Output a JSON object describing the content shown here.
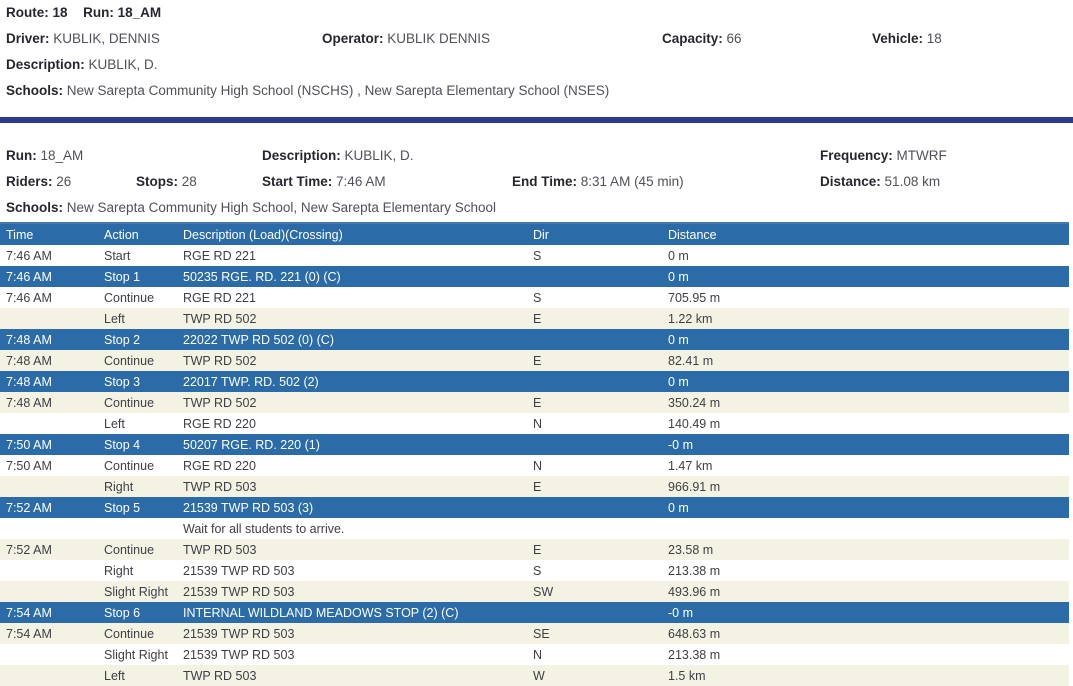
{
  "route_header": {
    "route": {
      "label": "Route:",
      "value": "18"
    },
    "run": {
      "label": "Run:",
      "value": "18_AM"
    },
    "driver": {
      "label": "Driver:",
      "value": "KUBLIK, DENNIS"
    },
    "operator": {
      "label": "Operator:",
      "value": "KUBLIK DENNIS"
    },
    "capacity": {
      "label": "Capacity:",
      "value": "66"
    },
    "vehicle": {
      "label": "Vehicle:",
      "value": "18"
    },
    "description": {
      "label": "Description:",
      "value": "KUBLIK, D."
    },
    "schools": {
      "label": "Schools:",
      "value": "New Sarepta Community High School (NSCHS) , New Sarepta Elementary School (NSES)"
    }
  },
  "run_details": {
    "run": {
      "label": "Run:",
      "value": "18_AM"
    },
    "description": {
      "label": "Description:",
      "value": "KUBLIK, D."
    },
    "frequency": {
      "label": "Frequency:",
      "value": "MTWRF"
    },
    "riders": {
      "label": "Riders:",
      "value": "26"
    },
    "stops": {
      "label": "Stops:",
      "value": "28"
    },
    "start_time": {
      "label": "Start Time:",
      "value": "7:46 AM"
    },
    "end_time": {
      "label": "End Time:",
      "value": "8:31 AM (45 min)"
    },
    "distance": {
      "label": "Distance:",
      "value": "51.08 km"
    },
    "schools": {
      "label": "Schools:",
      "value": "New Sarepta Community High School, New Sarepta Elementary School"
    }
  },
  "table": {
    "columns": [
      "Time",
      "Action",
      "Description (Load)(Crossing)",
      "Dir",
      "Distance"
    ],
    "rows": [
      {
        "time": "7:46 AM",
        "action": "Start",
        "description": "RGE RD 221",
        "dir": "S",
        "distance": "0 m",
        "type": "white"
      },
      {
        "time": "7:46 AM",
        "action": "Stop 1",
        "description": "50235 RGE. RD. 221 (0) (C)",
        "dir": "",
        "distance": "0 m",
        "type": "stop"
      },
      {
        "time": "7:46 AM",
        "action": "Continue",
        "description": "RGE RD 221",
        "dir": "S",
        "distance": "705.95 m",
        "type": "white"
      },
      {
        "time": "",
        "action": "Left",
        "description": "TWP RD 502",
        "dir": "E",
        "distance": "1.22 km",
        "type": "cream"
      },
      {
        "time": "7:48 AM",
        "action": "Stop 2",
        "description": "22022 TWP RD 502 (0) (C)",
        "dir": "",
        "distance": "0 m",
        "type": "stop"
      },
      {
        "time": "7:48 AM",
        "action": "Continue",
        "description": "TWP RD 502",
        "dir": "E",
        "distance": "82.41 m",
        "type": "cream"
      },
      {
        "time": "7:48 AM",
        "action": "Stop 3",
        "description": "22017 TWP. RD. 502 (2)",
        "dir": "",
        "distance": "0 m",
        "type": "stop"
      },
      {
        "time": "7:48 AM",
        "action": "Continue",
        "description": "TWP RD 502",
        "dir": "E",
        "distance": "350.24 m",
        "type": "cream"
      },
      {
        "time": "",
        "action": "Left",
        "description": "RGE RD 220",
        "dir": "N",
        "distance": "140.49 m",
        "type": "white"
      },
      {
        "time": "7:50 AM",
        "action": "Stop 4",
        "description": "50207 RGE. RD. 220 (1)",
        "dir": "",
        "distance": "-0 m",
        "type": "stop"
      },
      {
        "time": "7:50 AM",
        "action": "Continue",
        "description": "RGE RD 220",
        "dir": "N",
        "distance": "1.47 km",
        "type": "white"
      },
      {
        "time": "",
        "action": "Right",
        "description": "TWP RD 503",
        "dir": "E",
        "distance": "966.91 m",
        "type": "cream"
      },
      {
        "time": "7:52 AM",
        "action": "Stop 5",
        "description": "21539 TWP RD 503 (3)",
        "dir": "",
        "distance": "0 m",
        "type": "stop"
      },
      {
        "time": "",
        "action": "",
        "description": "Wait for all students to arrive.",
        "dir": "",
        "distance": "",
        "type": "note"
      },
      {
        "time": "7:52 AM",
        "action": "Continue",
        "description": "TWP RD 503",
        "dir": "E",
        "distance": "23.58 m",
        "type": "cream"
      },
      {
        "time": "",
        "action": "Right",
        "description": "21539 TWP RD 503",
        "dir": "S",
        "distance": "213.38 m",
        "type": "white"
      },
      {
        "time": "",
        "action": "Slight Right",
        "description": "21539 TWP RD 503",
        "dir": "SW",
        "distance": "493.96 m",
        "type": "cream"
      },
      {
        "time": "7:54 AM",
        "action": "Stop 6",
        "description": "INTERNAL WILDLAND MEADOWS STOP (2) (C)",
        "dir": "",
        "distance": "-0 m",
        "type": "stop"
      },
      {
        "time": "7:54 AM",
        "action": "Continue",
        "description": "21539 TWP RD 503",
        "dir": "SE",
        "distance": "648.63 m",
        "type": "cream"
      },
      {
        "time": "",
        "action": "Slight Right",
        "description": "21539 TWP RD 503",
        "dir": "N",
        "distance": "213.38 m",
        "type": "white"
      },
      {
        "time": "",
        "action": "Left",
        "description": "TWP RD 503",
        "dir": "W",
        "distance": "1.5 km",
        "type": "cream"
      }
    ]
  },
  "colors": {
    "table_header_blue": "#2b6ca8",
    "stop_row_blue": "#2b6ca8",
    "divider_navy": "#2f3b8a",
    "row_cream": "#f4f3e3",
    "text_dark": "#26262e",
    "text_value": "#50505a"
  }
}
